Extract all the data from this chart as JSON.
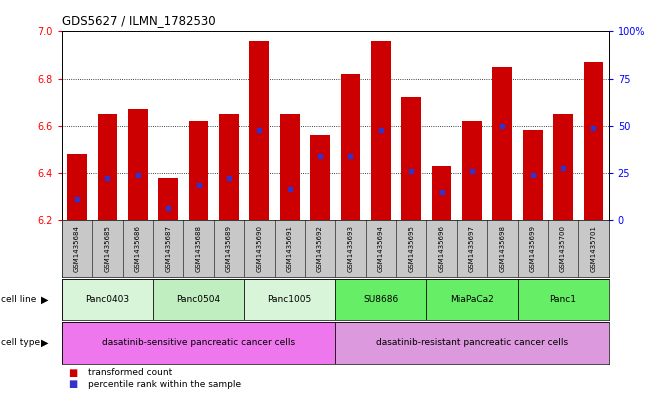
{
  "title": "GDS5627 / ILMN_1782530",
  "samples": [
    "GSM1435684",
    "GSM1435685",
    "GSM1435686",
    "GSM1435687",
    "GSM1435688",
    "GSM1435689",
    "GSM1435690",
    "GSM1435691",
    "GSM1435692",
    "GSM1435693",
    "GSM1435694",
    "GSM1435695",
    "GSM1435696",
    "GSM1435697",
    "GSM1435698",
    "GSM1435699",
    "GSM1435700",
    "GSM1435701"
  ],
  "bar_heights": [
    6.48,
    6.65,
    6.67,
    6.38,
    6.62,
    6.65,
    6.96,
    6.65,
    6.56,
    6.82,
    6.96,
    6.72,
    6.43,
    6.62,
    6.85,
    6.58,
    6.65,
    6.87
  ],
  "blue_markers": [
    6.29,
    6.38,
    6.39,
    6.25,
    6.35,
    6.38,
    6.58,
    6.33,
    6.47,
    6.47,
    6.58,
    6.41,
    6.32,
    6.41,
    6.6,
    6.39,
    6.42,
    6.59
  ],
  "ymin": 6.2,
  "ymax": 7.0,
  "y_ticks_left": [
    6.2,
    6.4,
    6.6,
    6.8,
    7.0
  ],
  "y_ticks_right": [
    0,
    25,
    50,
    75,
    100
  ],
  "bar_color": "#CC0000",
  "blue_color": "#3333CC",
  "cell_lines": [
    {
      "label": "Panc0403",
      "start": 0,
      "end": 3,
      "color": "#d9f5d9"
    },
    {
      "label": "Panc0504",
      "start": 3,
      "end": 6,
      "color": "#c0eec0"
    },
    {
      "label": "Panc1005",
      "start": 6,
      "end": 9,
      "color": "#d9f5d9"
    },
    {
      "label": "SU8686",
      "start": 9,
      "end": 12,
      "color": "#66ee66"
    },
    {
      "label": "MiaPaCa2",
      "start": 12,
      "end": 15,
      "color": "#66ee66"
    },
    {
      "label": "Panc1",
      "start": 15,
      "end": 18,
      "color": "#66ee66"
    }
  ],
  "cell_types": [
    {
      "label": "dasatinib-sensitive pancreatic cancer cells",
      "start": 0,
      "end": 9,
      "color": "#ee77ee"
    },
    {
      "label": "dasatinib-resistant pancreatic cancer cells",
      "start": 9,
      "end": 18,
      "color": "#dd99dd"
    }
  ],
  "background_color": "#ffffff"
}
